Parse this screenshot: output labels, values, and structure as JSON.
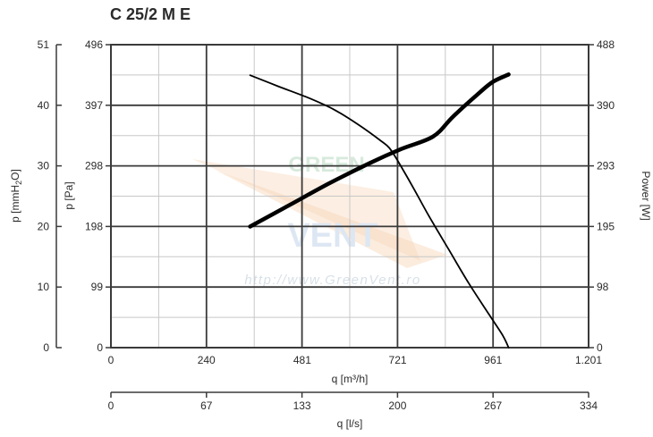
{
  "chart_data": {
    "type": "line",
    "title": "C 25/2 M E",
    "watermark": {
      "brand_top": "GREEN",
      "brand_bottom": "VENT",
      "url": "http://www.GreenVent.ro"
    },
    "x_axis": {
      "label": "q [m³/h]",
      "range": [
        0,
        1201
      ],
      "ticks": [
        0,
        240,
        481,
        721,
        961,
        1201
      ],
      "tick_labels": [
        "0",
        "240",
        "481",
        "721",
        "961",
        "1.201"
      ]
    },
    "x2_axis": {
      "label": "q [l/s]",
      "ticks": [
        0,
        67,
        133,
        200,
        267,
        334
      ],
      "tick_labels": [
        "0",
        "67",
        "133",
        "200",
        "267",
        "334"
      ]
    },
    "y_axis_mmh2o": {
      "label_main": "p [mmH",
      "label_sub": "2",
      "label_end": "O]",
      "tick_labels": [
        "0",
        "10",
        "20",
        "30",
        "40",
        "51"
      ]
    },
    "y_axis_pa": {
      "label": "p [Pa]",
      "range": [
        0,
        496
      ],
      "ticks": [
        0,
        99,
        198,
        298,
        397,
        496
      ],
      "tick_labels": [
        "0",
        "99",
        "198",
        "298",
        "397",
        "496"
      ]
    },
    "y_axis_power": {
      "label": "Power [W]",
      "range": [
        0,
        488
      ],
      "tick_labels": [
        "0",
        "98",
        "195",
        "293",
        "390",
        "488"
      ]
    },
    "grid": true,
    "series": [
      {
        "kind": "pressure",
        "axis": "pa",
        "color": "#000000",
        "points": [
          [
            350,
            446
          ],
          [
            420,
            428
          ],
          [
            500,
            408
          ],
          [
            560,
            390
          ],
          [
            620,
            366
          ],
          [
            680,
            338
          ],
          [
            700,
            327
          ],
          [
            721,
            306
          ],
          [
            760,
            262
          ],
          [
            800,
            215
          ],
          [
            850,
            160
          ],
          [
            900,
            105
          ],
          [
            950,
            55
          ],
          [
            985,
            20
          ],
          [
            1000,
            0
          ]
        ]
      },
      {
        "kind": "power",
        "axis": "power",
        "color": "#000000",
        "points": [
          [
            350,
            195
          ],
          [
            450,
            230
          ],
          [
            550,
            265
          ],
          [
            650,
            297
          ],
          [
            730,
            320
          ],
          [
            810,
            340
          ],
          [
            860,
            372
          ],
          [
            920,
            407
          ],
          [
            960,
            428
          ],
          [
            1000,
            440
          ]
        ]
      }
    ]
  }
}
